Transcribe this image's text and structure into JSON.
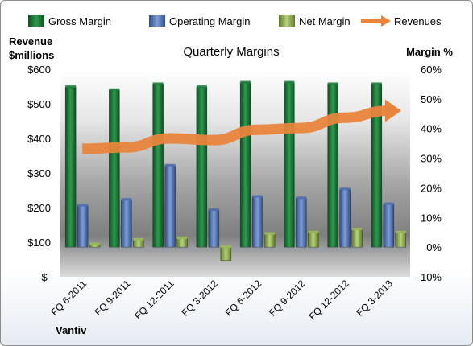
{
  "chart_data": {
    "type": "bar",
    "title": "Quarterly Margins",
    "categories": [
      "FQ 6-2011",
      "FQ 9-2011",
      "FQ 12-2011",
      "FQ 3-2012",
      "FQ 6-2012",
      "FQ 9-2012",
      "FQ 12-2012",
      "FQ 3-2013"
    ],
    "series": [
      {
        "name": "Gross Margin",
        "axis": "right",
        "unit": "%",
        "color": "#1e7a3c",
        "values": [
          54,
          53,
          55,
          54,
          55.5,
          55.5,
          55,
          55
        ]
      },
      {
        "name": "Operating Margin",
        "axis": "right",
        "unit": "%",
        "color": "#4f6fae",
        "values": [
          14,
          16,
          27.5,
          12.5,
          17,
          16.5,
          19.5,
          14.5
        ]
      },
      {
        "name": "Net Margin",
        "axis": "right",
        "unit": "%",
        "color": "#9bbb59",
        "values": [
          1,
          2.5,
          3,
          -4.5,
          4.5,
          5,
          6,
          5
        ]
      },
      {
        "name": "Revenues",
        "axis": "left",
        "unit": "$millions",
        "color": "#e8843c",
        "values": [
          370,
          374,
          400,
          395,
          425,
          430,
          460,
          480
        ]
      }
    ],
    "ylabel_left": "Revenue\n$millions",
    "ylabel_right": "Margin %",
    "ylim_left": [
      0,
      600
    ],
    "ylim_right": [
      -10,
      60
    ],
    "yticks_left": [
      "$-",
      "$100",
      "$200",
      "$300",
      "$400",
      "$500",
      "$600"
    ],
    "yticks_right": [
      "-10%",
      "0%",
      "10%",
      "20%",
      "30%",
      "40%",
      "50%",
      "60%"
    ],
    "legend_position": "top",
    "grid": false,
    "annotation": "Vantiv"
  }
}
